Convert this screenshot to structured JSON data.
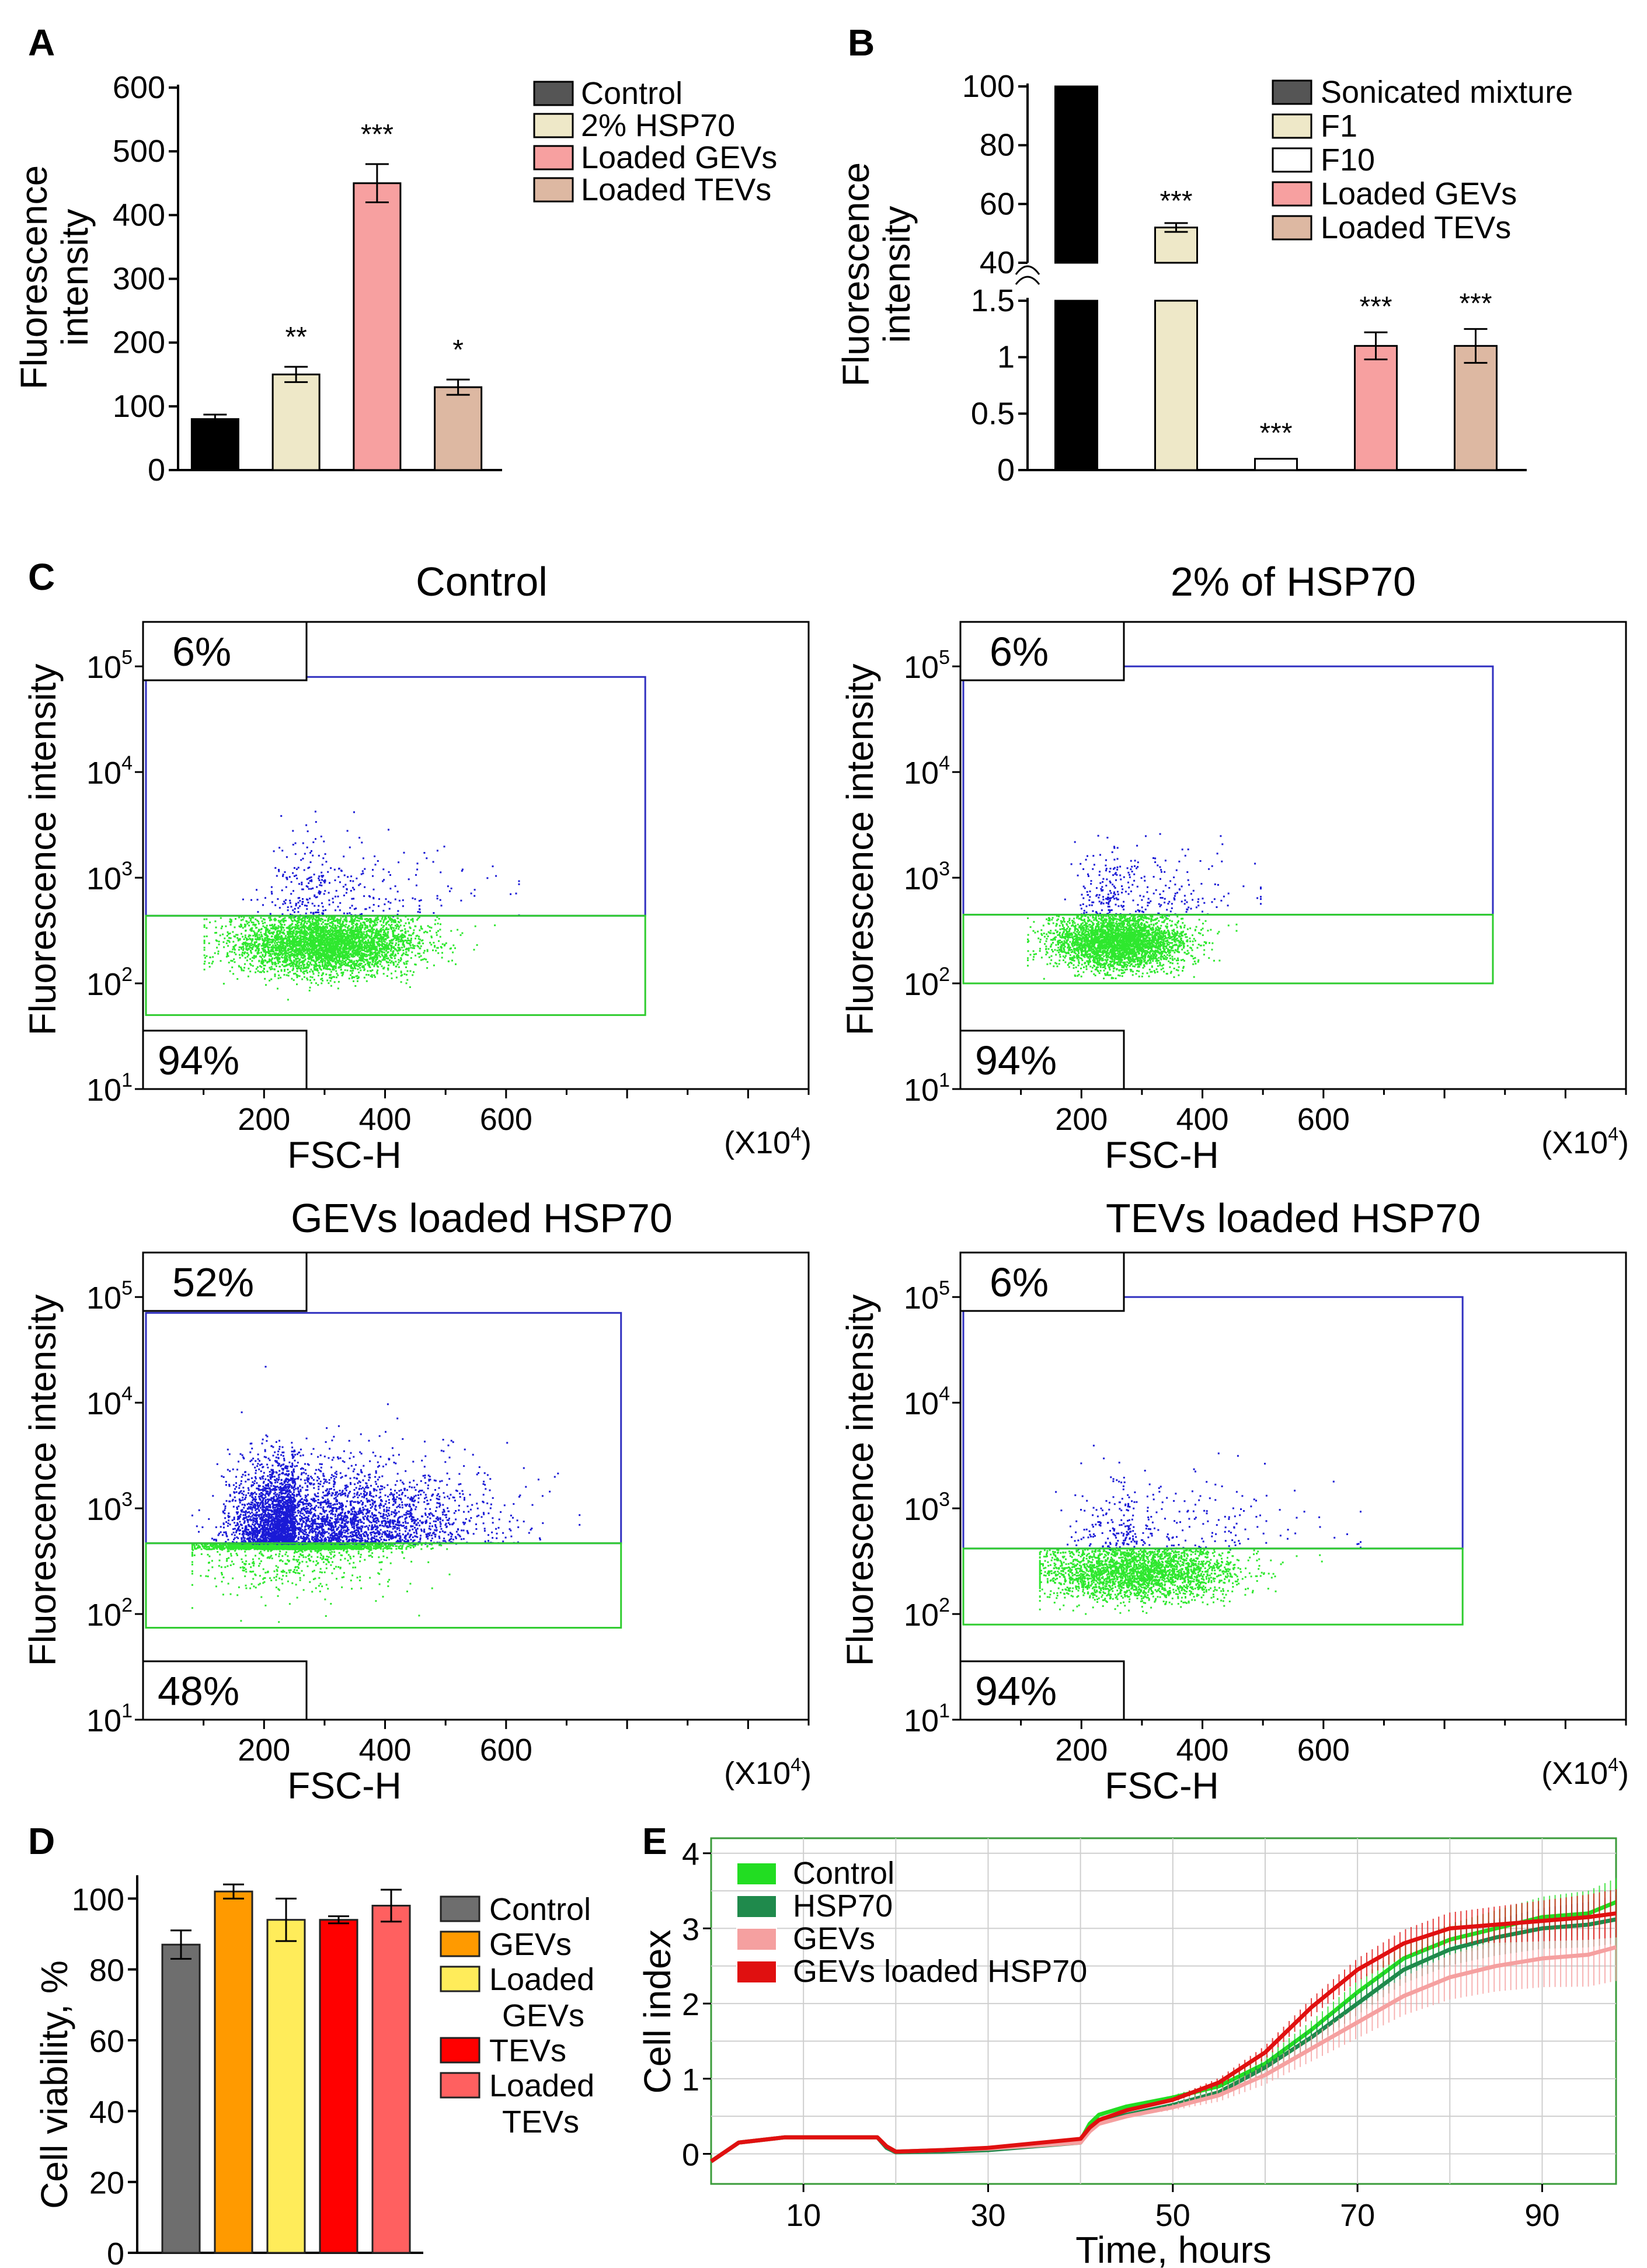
{
  "panels": {
    "A": {
      "label": "A"
    },
    "B": {
      "label": "B"
    },
    "C": {
      "label": "C"
    },
    "D": {
      "label": "D"
    },
    "E": {
      "label": "E"
    }
  },
  "chart_data": [
    {
      "panel": "A",
      "type": "bar",
      "ylabel": "Fluorescence intensity",
      "ylim": [
        0,
        600
      ],
      "yticks": [
        "0",
        "100",
        "200",
        "300",
        "400",
        "500",
        "600"
      ],
      "categories": [
        "Control",
        "2% HSP70",
        "Loaded GEVs",
        "Loaded TEVs"
      ],
      "values": [
        80,
        150,
        450,
        130
      ],
      "errors": [
        7,
        12,
        30,
        12
      ],
      "significance": [
        "",
        "**",
        "***",
        "*"
      ],
      "colors": [
        "#000000",
        "#eee8c8",
        "#f7a0a0",
        "#ddb8a2"
      ],
      "legend": [
        "Control",
        "2% HSP70",
        "Loaded GEVs",
        "Loaded TEVs"
      ],
      "legend_colors": [
        "#555555",
        "#eee8c8",
        "#f7a0a0",
        "#ddb8a2"
      ],
      "legend_placement": "top-right"
    },
    {
      "panel": "B",
      "type": "bar",
      "ylabel": "Fluorescence intensity",
      "broken_axis": true,
      "upper_ylim": [
        40,
        100
      ],
      "upper_yticks": [
        "40",
        "60",
        "80",
        "100"
      ],
      "lower_ylim": [
        0,
        1.5
      ],
      "lower_yticks": [
        "0",
        "0.5",
        "1",
        "1.5"
      ],
      "categories": [
        "Sonicated mixture",
        "F1",
        "F10",
        "Loaded GEVs",
        "Loaded TEVs"
      ],
      "values": [
        100,
        52,
        0.1,
        1.1,
        1.1
      ],
      "errors": [
        0,
        1.5,
        0,
        0.12,
        0.15
      ],
      "significance": [
        "",
        "***",
        "***",
        "***",
        "***"
      ],
      "colors": [
        "#000000",
        "#eee8c8",
        "#ffffff",
        "#f7a0a0",
        "#ddb8a2"
      ],
      "legend": [
        "Sonicated mixture",
        "F1",
        "F10",
        "Loaded GEVs",
        "Loaded TEVs"
      ],
      "legend_colors": [
        "#555555",
        "#eee8c8",
        "#ffffff",
        "#f7a0a0",
        "#ddb8a2"
      ],
      "legend_placement": "top-right"
    },
    {
      "panel": "C",
      "type": "scatter",
      "xlabel": "FSC-H",
      "ylabel": "Fluorescence intensity",
      "x_unit": "(X10^4)",
      "xticks": [
        "200",
        "400",
        "600"
      ],
      "yticks": [
        "10^1",
        "10^2",
        "10^3",
        "10^4",
        "10^5"
      ],
      "y_scale": "log",
      "colors": {
        "low": "#2ee82e",
        "high": "#1a1ad6",
        "low_gate": "#2ecc2e",
        "high_gate": "#3030c0"
      },
      "plots": [
        {
          "title": "Control",
          "high_gate_label": "6%",
          "low_gate_label": "94%",
          "n_low": 5500,
          "n_high": 330,
          "x_center": 300,
          "x_spread": 75,
          "x_min": 100,
          "x_max": 580,
          "y_center_log": 2.38,
          "y_spread_log": 0.14,
          "gate_x_max": 830,
          "gate_top_log": 4.9,
          "gate_threshold_log": 2.64,
          "gate_bottom_log": 1.7
        },
        {
          "title": "2% of HSP70",
          "high_gate_label": "6%",
          "low_gate_label": "94%",
          "n_low": 4500,
          "n_high": 300,
          "x_center": 260,
          "x_spread": 55,
          "x_min": 110,
          "x_max": 455,
          "y_center_log": 2.4,
          "y_spread_log": 0.13,
          "gate_x_max": 880,
          "gate_top_log": 5.0,
          "gate_threshold_log": 2.65,
          "gate_bottom_log": 2.0
        },
        {
          "title": "GEVs loaded HSP70",
          "high_gate_label": "52%",
          "low_gate_label": "48%",
          "n_low": 4000,
          "n_high": 4200,
          "x_center": 250,
          "x_spread": 80,
          "x_min": 80,
          "x_max": 680,
          "y_center_log": 2.9,
          "y_spread_log": 0.3,
          "gate_x_max": 790,
          "gate_top_log": 4.85,
          "gate_threshold_log": 2.67,
          "gate_bottom_log": 1.87
        },
        {
          "title": "TEVs loaded HSP70",
          "high_gate_label": "6%",
          "low_gate_label": "94%",
          "n_low": 6000,
          "n_high": 330,
          "x_center": 290,
          "x_spread": 80,
          "x_min": 130,
          "x_max": 620,
          "y_center_log": 2.4,
          "y_spread_log": 0.13,
          "gate_x_max": 830,
          "gate_top_log": 5.0,
          "gate_threshold_log": 2.62,
          "gate_bottom_log": 1.9
        }
      ]
    },
    {
      "panel": "D",
      "type": "bar",
      "ylabel": "Cell viability, %",
      "ylim": [
        0,
        120
      ],
      "yticks": [
        "0",
        "20",
        "40",
        "60",
        "80",
        "100"
      ],
      "categories": [
        "Control",
        "GEVs",
        "Loaded GEVs",
        "TEVs",
        "Loaded TEVs"
      ],
      "values": [
        87,
        102,
        94,
        94,
        98
      ],
      "errors": [
        4,
        2,
        6,
        1,
        4.5
      ],
      "colors": [
        "#6e6e6e",
        "#ff9a00",
        "#ffec5a",
        "#ff0000",
        "#ff6060"
      ],
      "legend": [
        "Control",
        "GEVs",
        "Loaded\nGEVs",
        "TEVs",
        "Loaded\nTEVs"
      ],
      "legend_placement": "right"
    },
    {
      "panel": "E",
      "type": "line",
      "xlabel": "Time, hours",
      "ylabel": "Cell index",
      "xlim": [
        0,
        98
      ],
      "ylim": [
        -0.4,
        4.2
      ],
      "xticks": [
        "10",
        "30",
        "50",
        "70",
        "90"
      ],
      "yticks": [
        "0",
        "1",
        "2",
        "3",
        "4"
      ],
      "grid": true,
      "legend_placement": "top-left",
      "series": [
        {
          "name": "Control",
          "color": "#22dd22",
          "x": [
            0,
            3,
            8,
            18,
            19,
            20,
            25,
            30,
            40,
            41,
            42,
            45,
            50,
            55,
            60,
            65,
            70,
            75,
            80,
            85,
            90,
            95,
            98
          ],
          "y": [
            -0.1,
            0.15,
            0.22,
            0.22,
            0.1,
            0.03,
            0.05,
            0.07,
            0.18,
            0.4,
            0.52,
            0.63,
            0.75,
            0.9,
            1.2,
            1.65,
            2.15,
            2.6,
            2.85,
            3.0,
            3.15,
            3.2,
            3.35
          ]
        },
        {
          "name": "HSP70",
          "color": "#1f8a4c",
          "x": [
            0,
            3,
            8,
            18,
            19,
            20,
            25,
            30,
            40,
            41,
            42,
            45,
            50,
            55,
            60,
            65,
            70,
            75,
            80,
            85,
            90,
            95,
            98
          ],
          "y": [
            -0.1,
            0.15,
            0.22,
            0.22,
            0.08,
            0.02,
            0.03,
            0.05,
            0.15,
            0.32,
            0.42,
            0.52,
            0.65,
            0.82,
            1.15,
            1.55,
            2.0,
            2.45,
            2.72,
            2.88,
            3.0,
            3.05,
            3.12
          ]
        },
        {
          "name": "GEVs",
          "color": "#f5a0a0",
          "x": [
            0,
            3,
            8,
            18,
            19,
            20,
            25,
            30,
            40,
            41,
            42,
            45,
            50,
            55,
            60,
            65,
            70,
            75,
            80,
            85,
            90,
            95,
            98
          ],
          "y": [
            -0.1,
            0.15,
            0.22,
            0.22,
            0.1,
            0.03,
            0.05,
            0.07,
            0.15,
            0.3,
            0.4,
            0.5,
            0.62,
            0.78,
            1.05,
            1.4,
            1.75,
            2.1,
            2.35,
            2.5,
            2.6,
            2.65,
            2.75
          ]
        },
        {
          "name": "GEVs loaded HSP70",
          "color": "#e01010",
          "x": [
            0,
            3,
            8,
            18,
            19,
            20,
            25,
            30,
            40,
            41,
            42,
            45,
            50,
            55,
            60,
            65,
            70,
            75,
            80,
            85,
            90,
            95,
            98
          ],
          "y": [
            -0.1,
            0.15,
            0.22,
            0.22,
            0.1,
            0.03,
            0.05,
            0.08,
            0.2,
            0.35,
            0.45,
            0.58,
            0.72,
            0.95,
            1.35,
            1.95,
            2.45,
            2.8,
            3.0,
            3.05,
            3.1,
            3.15,
            3.2
          ]
        }
      ]
    }
  ]
}
